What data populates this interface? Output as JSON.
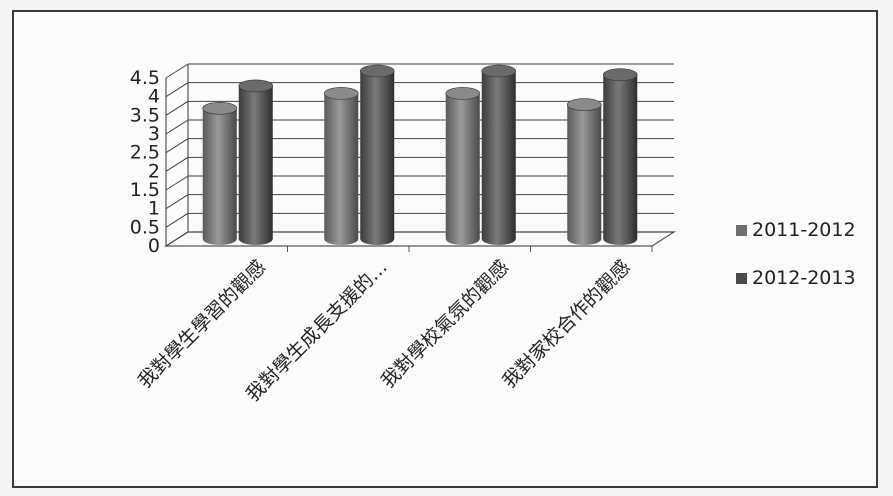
{
  "chart_data": {
    "type": "bar",
    "title": "",
    "xlabel": "",
    "ylabel": "",
    "categories": [
      "我對學生學習的觀感",
      "我對學生成長支援的…",
      "我對學校氣氛的觀感",
      "我對家校合作的觀感"
    ],
    "series": [
      {
        "name": "2011-2012",
        "values": [
          3.5,
          3.9,
          3.9,
          3.6
        ],
        "color": "#6e6e6e"
      },
      {
        "name": "2012-2013",
        "values": [
          4.1,
          4.5,
          4.5,
          4.4
        ],
        "color": "#4a4a4a"
      }
    ],
    "ylim": [
      0,
      4.5
    ],
    "yticks": [
      "0",
      "0.5",
      "1",
      "1.5",
      "2",
      "2.5",
      "3",
      "3.5",
      "4",
      "4.5"
    ],
    "grid": true,
    "legend_position": "right",
    "style": "3d-cylinder"
  }
}
